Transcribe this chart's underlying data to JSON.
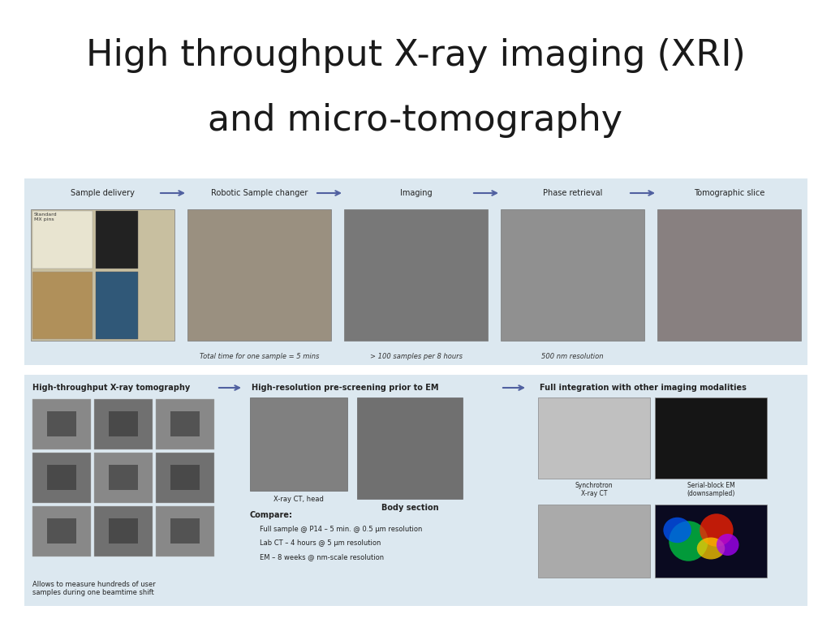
{
  "title_line1": "High throughput X-ray imaging (XRI)",
  "title_line2": "and micro-tomography",
  "title_fontsize": 32,
  "title_color": "#1a1a1a",
  "background_color": "#ffffff",
  "panel1_bg": "#dce8f0",
  "panel2_bg": "#dce8f0",
  "top_labels": [
    "Sample delivery",
    "Robotic Sample changer",
    "Imaging",
    "Phase retrieval",
    "Tomographic slice"
  ],
  "top_captions": [
    "",
    "Total time for one sample = 5 mins",
    "> 100 samples per 8 hours",
    "500 nm resolution",
    ""
  ],
  "bottom_label1": "High-throughput X-ray tomography",
  "bottom_label2": "High-resolution pre-screening prior to EM",
  "bottom_label3": "Full integration with other imaging modalities",
  "bottom_sub1": "Allows to measure hundreds of user\nsamples during one beamtime shift",
  "bottom_sub2_title": "Compare:",
  "bottom_sub2_lines": [
    "Full sample @ P14 – 5 min. @ 0.5 μm resolution",
    "Lab CT – 4 hours @ 5 μm resolution",
    "EM – 8 weeks @ nm-scale resolution"
  ],
  "bottom_sub2_extra": [
    "X-ray CT, head",
    "Body section"
  ],
  "bottom_sub3_labels": [
    "Synchrotron\nX-ray CT",
    "Serial-block EM\n(downsampled)"
  ],
  "arrow_color": "#5060a0",
  "label_color": "#222222",
  "caption_color": "#333333",
  "top_img_colors": [
    "#c8bfa0",
    "#9a9080",
    "#787878",
    "#909090",
    "#888080"
  ],
  "grid_colors_light": "#909090",
  "grid_colors_dark": "#707070"
}
